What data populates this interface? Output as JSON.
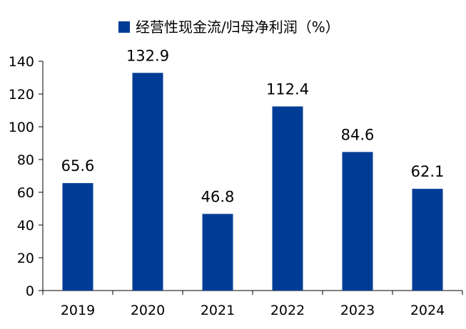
{
  "chart_data": {
    "type": "bar",
    "title": "",
    "xlabel": "",
    "ylabel": "",
    "categories": [
      "2019",
      "2020",
      "2021",
      "2022",
      "2023",
      "2024"
    ],
    "series": [
      {
        "name": "经营性现金流/归母净利润（%）",
        "values": [
          65.6,
          132.9,
          46.8,
          112.4,
          84.6,
          62.1
        ],
        "color": "#003C96"
      }
    ],
    "data_labels": [
      "65.6",
      "132.9",
      "46.8",
      "112.4",
      "84.6",
      "62.1"
    ],
    "ylim": [
      0,
      140
    ],
    "y_ticks": [
      0,
      20,
      40,
      60,
      80,
      100,
      120,
      140
    ],
    "grid": false,
    "legend_position": "top-center"
  }
}
